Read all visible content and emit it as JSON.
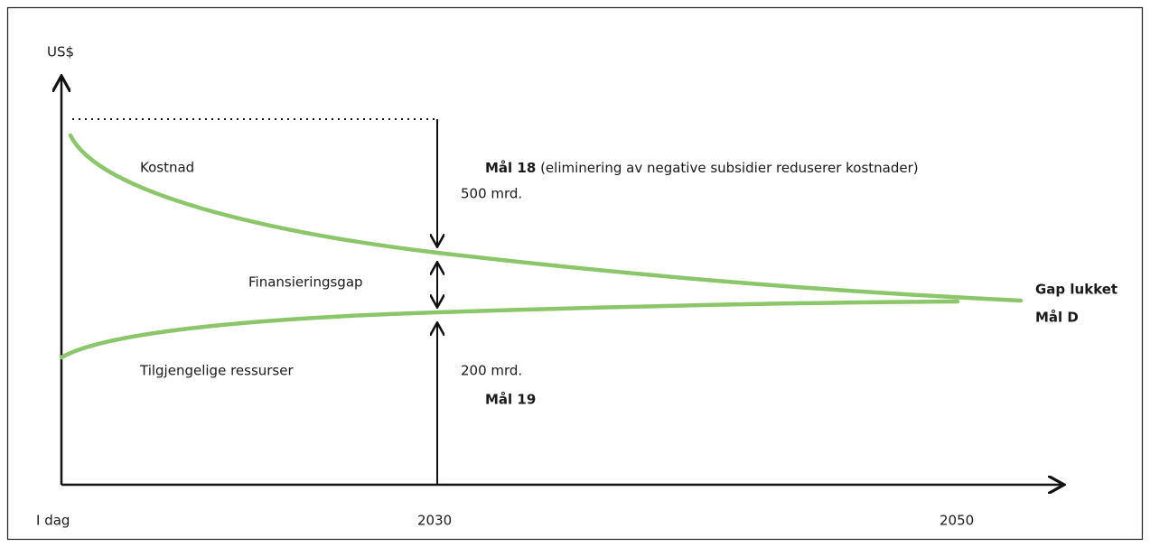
{
  "axis": {
    "y_label": "US$",
    "x_labels": [
      "I dag",
      "2030",
      "2050"
    ]
  },
  "cost": {
    "label": "Kostnad",
    "goal": "Mål 18",
    "goal_note": " (eliminering av negative subsidier reduserer kostnader)",
    "amount": "500 mrd."
  },
  "gap": {
    "label": "Finansieringsgap",
    "closed": "Gap lukket",
    "goal": "Mål D"
  },
  "resources": {
    "label": "Tilgjengelige ressurser",
    "amount": "200 mrd.",
    "goal": "Mål 19"
  }
}
